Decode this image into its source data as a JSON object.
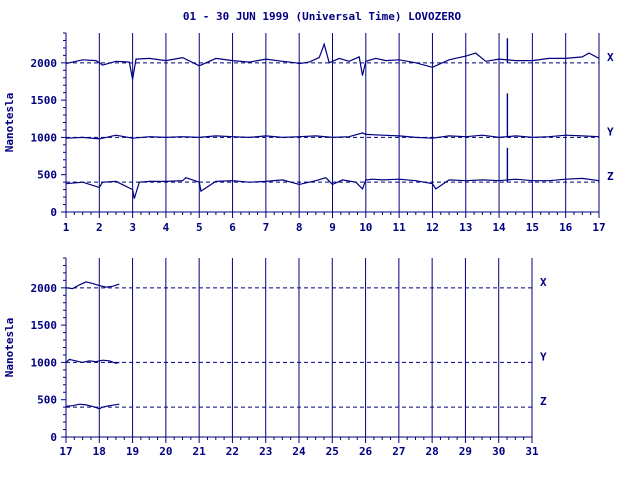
{
  "chart_data": {
    "type": "line",
    "title": "01 - 30 JUN 1999 (Universal Time) LOVOZERO",
    "colors": {
      "trace": "#000080",
      "grid": "#000080",
      "background": "#ffffff"
    },
    "grid": true,
    "panels": [
      {
        "id": "top",
        "ylabel": "Nanotesla",
        "xlim": [
          1,
          17
        ],
        "ylim": [
          0,
          2400
        ],
        "xticks": [
          "1",
          "2",
          "3",
          "4",
          "5",
          "6",
          "7",
          "8",
          "9",
          "10",
          "11",
          "12",
          "13",
          "14",
          "15",
          "16",
          "17"
        ],
        "yticks": [
          0,
          500,
          1000,
          1500,
          2000
        ],
        "baselines": [
          {
            "component": "X",
            "value": 2000
          },
          {
            "component": "Y",
            "value": 1000
          },
          {
            "component": "Z",
            "value": 400
          }
        ],
        "series": [
          {
            "name": "X",
            "x": [
              1.0,
              1.5,
              1.9,
              2.0,
              2.1,
              2.5,
              2.9,
              3.0,
              3.1,
              3.5,
              4.0,
              4.5,
              5.0,
              5.5,
              6.0,
              6.5,
              7.0,
              7.5,
              7.9,
              8.0,
              8.3,
              8.6,
              8.75,
              8.9,
              9.2,
              9.5,
              9.8,
              9.9,
              10.0,
              10.3,
              10.6,
              11.0,
              11.5,
              12.0,
              12.5,
              13.0,
              13.3,
              13.6,
              14.0,
              14.5,
              15.0,
              15.5,
              16.0,
              16.5,
              16.7,
              17.0
            ],
            "y": [
              1990,
              2040,
              2030,
              2000,
              1970,
              2020,
              2010,
              1780,
              2050,
              2060,
              2030,
              2070,
              1960,
              2060,
              2030,
              2010,
              2050,
              2020,
              2000,
              1990,
              2010,
              2070,
              2250,
              2000,
              2060,
              2020,
              2080,
              1830,
              2020,
              2060,
              2030,
              2040,
              2000,
              1940,
              2040,
              2090,
              2130,
              2020,
              2050,
              2030,
              2030,
              2060,
              2060,
              2080,
              2130,
              2060
            ]
          },
          {
            "name": "Y",
            "x": [
              1.0,
              1.5,
              2.0,
              2.5,
              3.0,
              3.5,
              4.0,
              4.5,
              5.0,
              5.5,
              6.0,
              6.5,
              7.0,
              7.5,
              8.0,
              8.5,
              9.0,
              9.5,
              9.9,
              10.0,
              10.5,
              11.0,
              11.5,
              12.0,
              12.5,
              13.0,
              13.5,
              14.0,
              14.5,
              15.0,
              15.5,
              16.0,
              16.5,
              17.0
            ],
            "y": [
              990,
              1000,
              980,
              1030,
              990,
              1010,
              1000,
              1010,
              1000,
              1020,
              1010,
              1000,
              1020,
              1000,
              1010,
              1020,
              1000,
              1010,
              1060,
              1040,
              1030,
              1020,
              1000,
              990,
              1020,
              1010,
              1030,
              1000,
              1020,
              1000,
              1010,
              1030,
              1020,
              1010
            ]
          },
          {
            "name": "Z",
            "x": [
              1.0,
              1.5,
              2.0,
              2.1,
              2.5,
              3.0,
              3.05,
              3.2,
              3.5,
              4.0,
              4.5,
              4.6,
              5.0,
              5.05,
              5.5,
              6.0,
              6.5,
              7.0,
              7.5,
              8.0,
              8.5,
              8.8,
              9.0,
              9.3,
              9.7,
              9.9,
              10.0,
              10.2,
              10.5,
              11.0,
              11.5,
              12.0,
              12.1,
              12.5,
              13.0,
              13.5,
              14.0,
              14.5,
              15.0,
              15.5,
              16.0,
              16.5,
              17.0
            ],
            "y": [
              380,
              400,
              330,
              400,
              410,
              300,
              180,
              400,
              410,
              410,
              420,
              460,
              400,
              280,
              410,
              420,
              400,
              410,
              430,
              370,
              420,
              460,
              370,
              430,
              400,
              310,
              430,
              440,
              430,
              440,
              420,
              380,
              310,
              430,
              420,
              430,
              420,
              440,
              420,
              420,
              440,
              450,
              420
            ]
          }
        ],
        "spikes": [
          {
            "component": "X",
            "x": 14.25,
            "y": [
              2000,
              2330
            ]
          },
          {
            "component": "Y",
            "x": 14.25,
            "y": [
              1000,
              1590
            ]
          },
          {
            "component": "Z",
            "x": 14.25,
            "y": [
              400,
              860
            ]
          }
        ]
      },
      {
        "id": "bottom",
        "ylabel": "Nanotesla",
        "xlim": [
          17,
          31
        ],
        "ylim": [
          0,
          2400
        ],
        "xticks": [
          "17",
          "18",
          "19",
          "20",
          "21",
          "22",
          "23",
          "24",
          "25",
          "26",
          "27",
          "28",
          "29",
          "30",
          "31"
        ],
        "yticks": [
          0,
          500,
          1000,
          1500,
          2000
        ],
        "baselines": [
          {
            "component": "X",
            "value": 2000
          },
          {
            "component": "Y",
            "value": 1000
          },
          {
            "component": "Z",
            "value": 400
          }
        ],
        "series": [
          {
            "name": "X",
            "x": [
              17.0,
              17.2,
              17.4,
              17.6,
              17.8,
              18.0,
              18.2,
              18.4,
              18.6
            ],
            "y": [
              2000,
              1990,
              2040,
              2080,
              2060,
              2030,
              2010,
              2020,
              2050
            ]
          },
          {
            "name": "Y",
            "x": [
              17.0,
              17.1,
              17.3,
              17.5,
              17.7,
              17.9,
              18.1,
              18.3,
              18.5,
              18.6
            ],
            "y": [
              1000,
              1040,
              1020,
              1000,
              1020,
              1010,
              1030,
              1020,
              990,
              1000
            ]
          },
          {
            "name": "Z",
            "x": [
              17.0,
              17.2,
              17.4,
              17.6,
              17.8,
              18.0,
              18.1,
              18.3,
              18.6
            ],
            "y": [
              410,
              420,
              440,
              430,
              410,
              380,
              400,
              420,
              440
            ]
          }
        ],
        "spikes": []
      }
    ]
  }
}
